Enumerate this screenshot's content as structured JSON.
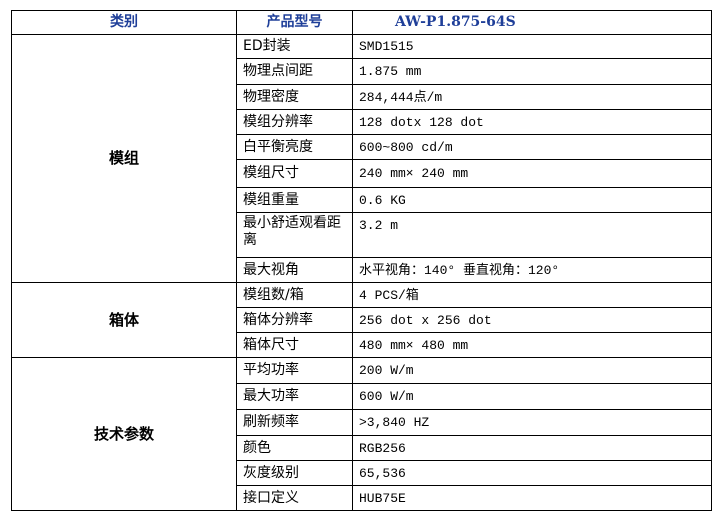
{
  "header": {
    "category": "类别",
    "model_label": "产品型号",
    "model_value": "AW-P1.875-64S"
  },
  "groups": [
    {
      "name": "模组",
      "rows": [
        {
          "label": "ED封装",
          "value": "SMD1515"
        },
        {
          "label": "物理点间距",
          "value": "1.875 mm"
        },
        {
          "label": "物理密度",
          "value": "284,444点/m"
        },
        {
          "label": "模组分辨率",
          "value": "128 dotx 128 dot"
        },
        {
          "label": "白平衡亮度",
          "value": "600~800 cd/m"
        },
        {
          "label": "模组尺寸",
          "value": "240 mm× 240 mm"
        },
        {
          "label": "模组重量",
          "value": "0.6 KG"
        },
        {
          "label": "最小舒适观看距离",
          "value": "3.2 m"
        },
        {
          "label": "最大视角",
          "value": "水平视角：140° 垂直视角：120°"
        }
      ]
    },
    {
      "name": "箱体",
      "rows": [
        {
          "label": "模组数/箱",
          "value": "4 PCS/箱"
        },
        {
          "label": "箱体分辨率",
          "value": "256 dot x 256 dot"
        },
        {
          "label": "箱体尺寸",
          "value": "480 mm× 480 mm"
        }
      ]
    },
    {
      "name": "技术参数",
      "rows": [
        {
          "label": "平均功率",
          "value": "200 W/m"
        },
        {
          "label": "最大功率",
          "value": "600 W/m"
        },
        {
          "label": "刷新频率",
          "value": ">3,840 HZ"
        },
        {
          "label": "颜色",
          "value": "RGB256"
        },
        {
          "label": "灰度级别",
          "value": "65,536"
        },
        {
          "label": "接口定义",
          "value": "HUB75E"
        }
      ]
    }
  ]
}
